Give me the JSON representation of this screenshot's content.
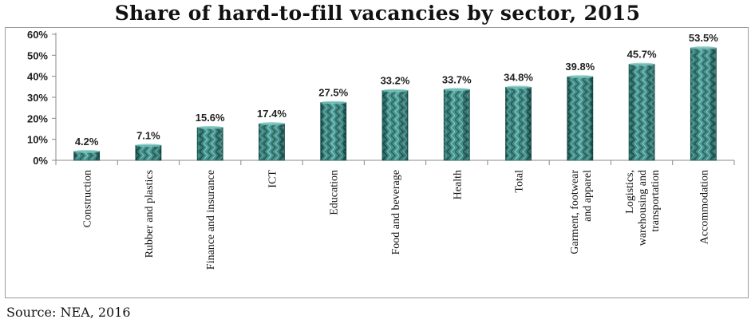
{
  "title": "Share of hard-to-fill vacancies by sector, 2015",
  "source": "Source: NEA, 2016",
  "colors": {
    "bar": "#2e8b85",
    "bar_dark": "#14504c",
    "bar_light": "#7cc8c0",
    "axis": "#888888"
  },
  "chart_data": {
    "type": "bar",
    "title": "Share of hard-to-fill vacancies by sector, 2015",
    "xlabel": "",
    "ylabel": "",
    "ylim": [
      0,
      60
    ],
    "yticks": [
      "0%",
      "10%",
      "20%",
      "30%",
      "40%",
      "50%",
      "60%"
    ],
    "yticks_values": [
      0,
      10,
      20,
      30,
      40,
      50,
      60
    ],
    "grid": false,
    "categories": [
      [
        "Construction"
      ],
      [
        "Rubber and plastics"
      ],
      [
        "Finance and insurance"
      ],
      [
        "ICT"
      ],
      [
        "Education"
      ],
      [
        "Food and beverage"
      ],
      [
        "Health"
      ],
      [
        "Total"
      ],
      [
        "Garment, footwear",
        "and apparel"
      ],
      [
        "Logistics,",
        "warehousing and",
        "transportation"
      ],
      [
        "Accommodation"
      ]
    ],
    "values": [
      4.2,
      7.1,
      15.6,
      17.4,
      27.5,
      33.2,
      33.7,
      34.8,
      39.8,
      45.7,
      53.5
    ],
    "data_labels": [
      "4.2%",
      "7.1%",
      "15.6%",
      "17.4%",
      "27.5%",
      "33.2%",
      "33.7%",
      "34.8%",
      "39.8%",
      "45.7%",
      "53.5%"
    ]
  }
}
